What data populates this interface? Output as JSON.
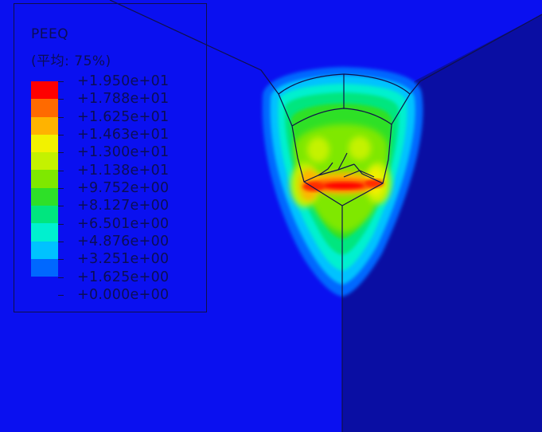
{
  "legend": {
    "variable": "PEEQ",
    "averaging": "(平均: 75%)",
    "values": [
      "+1.950e+01",
      "+1.788e+01",
      "+1.625e+01",
      "+1.463e+01",
      "+1.300e+01",
      "+1.138e+01",
      "+9.752e+00",
      "+8.127e+00",
      "+6.501e+00",
      "+4.876e+00",
      "+3.251e+00",
      "+1.625e+00",
      "+0.000e+00"
    ],
    "colors": [
      "#ff0000",
      "#ff6a00",
      "#ffb300",
      "#f2f200",
      "#c4f200",
      "#7fe800",
      "#2ee028",
      "#00e67f",
      "#00f0cf",
      "#00c2ff",
      "#0068ff",
      "#0a10f0"
    ]
  },
  "model": {
    "colors": {
      "background": "#0a10f0",
      "right_face": "#0a0ea3",
      "edge": "#10104a"
    }
  }
}
